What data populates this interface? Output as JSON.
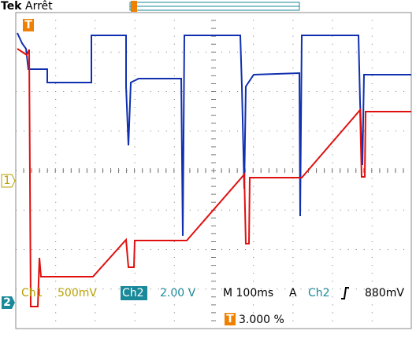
{
  "header": {
    "brand": "Tek",
    "status": "Arrêt",
    "trigger_marker": "T"
  },
  "markers": {
    "ch1": "1",
    "ch2": "2"
  },
  "readout": {
    "ch1_label": "Ch1",
    "ch1_scale": "500mV",
    "ch2_label": "Ch2",
    "ch2_scale": "2.00 V",
    "timebase": "M 100ms",
    "trigger_mode": "A",
    "trigger_source": "Ch2",
    "trigger_level": "880mV",
    "position_marker": "T",
    "position": "3.000 %"
  }
}
